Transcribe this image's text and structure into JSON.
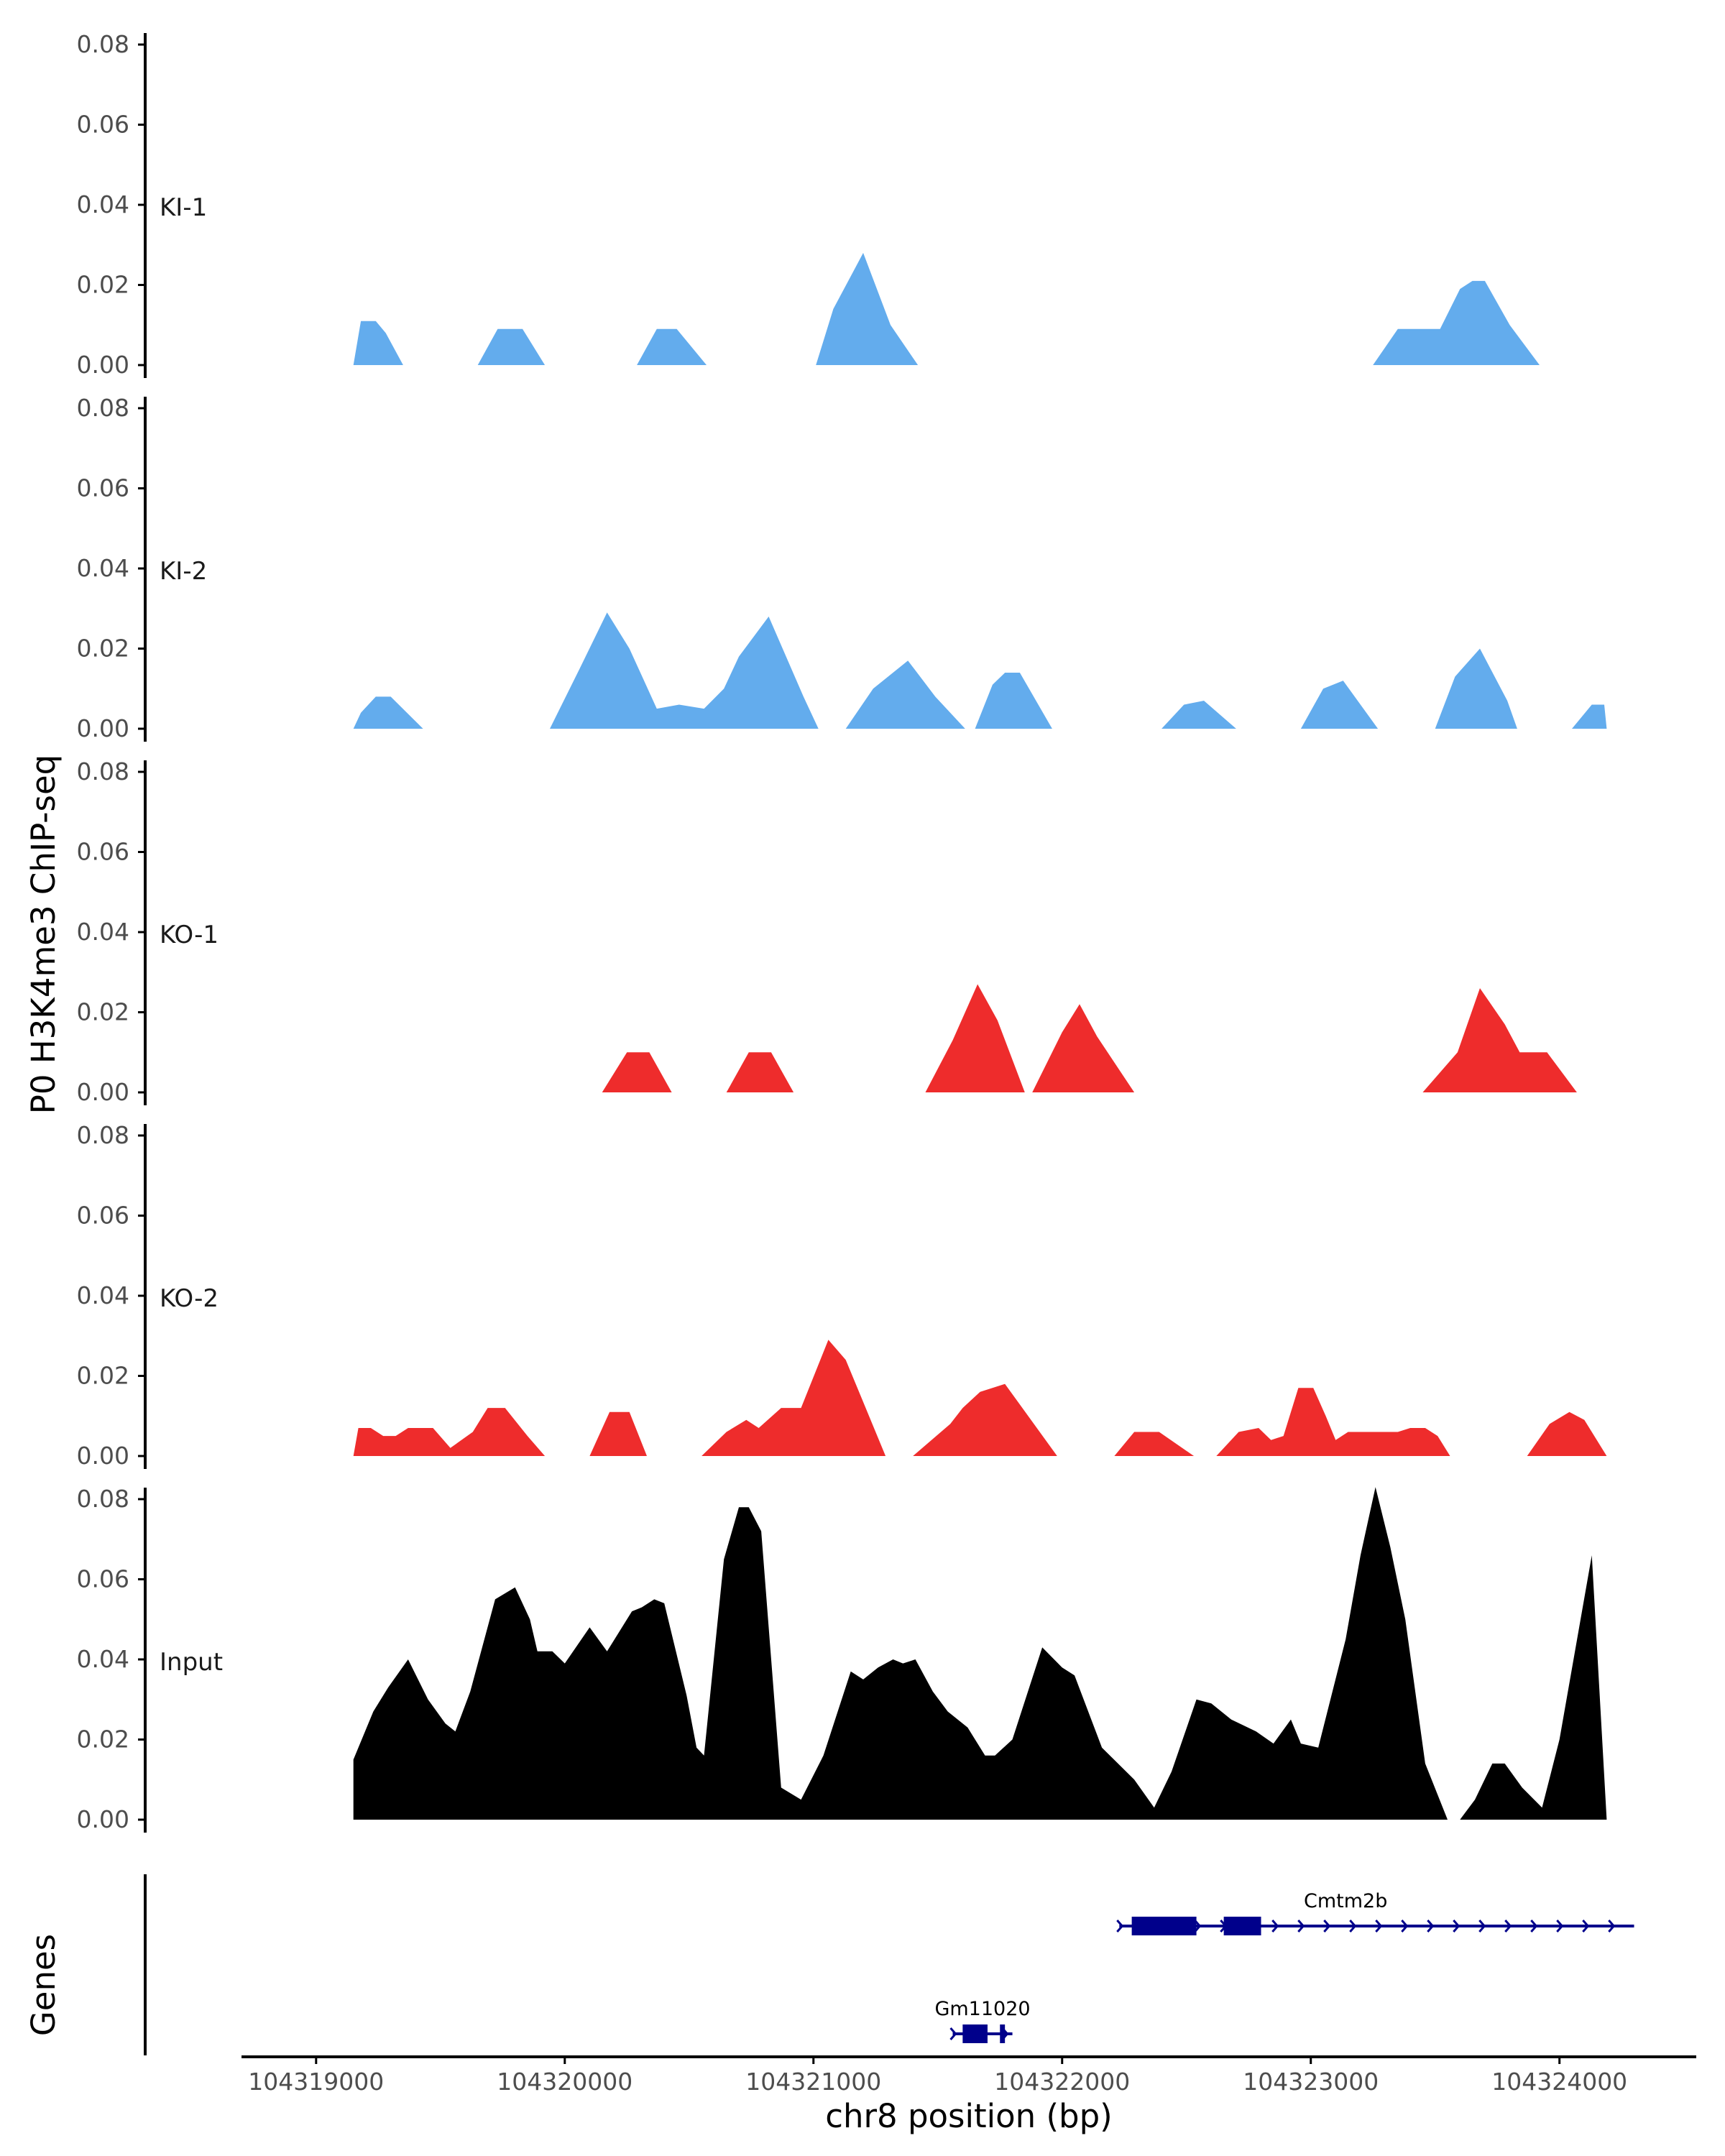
{
  "chart_data": {
    "type": "area",
    "ylabel": "P0 H3K4me3 ChIP-seq",
    "xlabel": "chr8 position (bp)",
    "xlim": [
      104318700,
      104324550
    ],
    "x_ticks": [
      104319000,
      104320000,
      104321000,
      104322000,
      104323000,
      104324000
    ],
    "x_tick_labels": [
      "104319000",
      "104320000",
      "104321000",
      "104322000",
      "104323000",
      "104324000"
    ],
    "ylim": [
      0,
      0.08
    ],
    "y_ticks": [
      0,
      0.02,
      0.04,
      0.06,
      0.08
    ],
    "y_tick_labels": [
      "0.00",
      "0.02",
      "0.04",
      "0.06",
      "0.08"
    ],
    "colors": {
      "KI": "#63aced",
      "KO": "#ee2c2c",
      "Input": "#000000",
      "gene": "#00008b"
    },
    "tracks": [
      {
        "name": "KI-1",
        "color": "#63aced",
        "points": [
          [
            104319150,
            0
          ],
          [
            104319180,
            0.011
          ],
          [
            104319240,
            0.011
          ],
          [
            104319280,
            0.008
          ],
          [
            104319350,
            0
          ],
          [
            104319650,
            0
          ],
          [
            104319730,
            0.009
          ],
          [
            104319830,
            0.009
          ],
          [
            104319920,
            0
          ],
          [
            104320290,
            0
          ],
          [
            104320370,
            0.009
          ],
          [
            104320450,
            0.009
          ],
          [
            104320570,
            0
          ],
          [
            104321010,
            0
          ],
          [
            104321080,
            0.014
          ],
          [
            104321200,
            0.028
          ],
          [
            104321310,
            0.01
          ],
          [
            104321420,
            0
          ],
          [
            104323250,
            0
          ],
          [
            104323350,
            0.009
          ],
          [
            104323520,
            0.009
          ],
          [
            104323600,
            0.019
          ],
          [
            104323650,
            0.021
          ],
          [
            104323700,
            0.021
          ],
          [
            104323800,
            0.01
          ],
          [
            104323920,
            0
          ]
        ]
      },
      {
        "name": "KI-2",
        "color": "#63aced",
        "points": [
          [
            104319150,
            0
          ],
          [
            104319180,
            0.004
          ],
          [
            104319240,
            0.008
          ],
          [
            104319300,
            0.008
          ],
          [
            104319430,
            0
          ],
          [
            104319940,
            0
          ],
          [
            104320060,
            0.015
          ],
          [
            104320170,
            0.029
          ],
          [
            104320260,
            0.02
          ],
          [
            104320370,
            0.005
          ],
          [
            104320460,
            0.006
          ],
          [
            104320560,
            0.005
          ],
          [
            104320640,
            0.01
          ],
          [
            104320700,
            0.018
          ],
          [
            104320820,
            0.028
          ],
          [
            104320960,
            0.008
          ],
          [
            104321020,
            0
          ],
          [
            104321130,
            0
          ],
          [
            104321240,
            0.01
          ],
          [
            104321380,
            0.017
          ],
          [
            104321490,
            0.008
          ],
          [
            104321610,
            0
          ],
          [
            104321650,
            0
          ],
          [
            104321720,
            0.011
          ],
          [
            104321770,
            0.014
          ],
          [
            104321830,
            0.014
          ],
          [
            104321960,
            0
          ],
          [
            104322400,
            0
          ],
          [
            104322490,
            0.006
          ],
          [
            104322570,
            0.007
          ],
          [
            104322700,
            0
          ],
          [
            104322960,
            0
          ],
          [
            104323050,
            0.01
          ],
          [
            104323130,
            0.012
          ],
          [
            104323270,
            0
          ],
          [
            104323500,
            0
          ],
          [
            104323580,
            0.013
          ],
          [
            104323680,
            0.02
          ],
          [
            104323790,
            0.007
          ],
          [
            104323830,
            0
          ],
          [
            104324050,
            0
          ],
          [
            104324130,
            0.006
          ],
          [
            104324180,
            0.006
          ],
          [
            104324190,
            0
          ]
        ]
      },
      {
        "name": "KO-1",
        "color": "#ee2c2c",
        "points": [
          [
            104320150,
            0
          ],
          [
            104320250,
            0.01
          ],
          [
            104320340,
            0.01
          ],
          [
            104320430,
            0
          ],
          [
            104320650,
            0
          ],
          [
            104320740,
            0.01
          ],
          [
            104320830,
            0.01
          ],
          [
            104320920,
            0
          ],
          [
            104321450,
            0
          ],
          [
            104321560,
            0.013
          ],
          [
            104321660,
            0.027
          ],
          [
            104321740,
            0.018
          ],
          [
            104321850,
            0
          ],
          [
            104321880,
            0
          ],
          [
            104322000,
            0.015
          ],
          [
            104322070,
            0.022
          ],
          [
            104322140,
            0.014
          ],
          [
            104322290,
            0
          ],
          [
            104323450,
            0
          ],
          [
            104323590,
            0.01
          ],
          [
            104323680,
            0.026
          ],
          [
            104323780,
            0.017
          ],
          [
            104323840,
            0.01
          ],
          [
            104323880,
            0.01
          ],
          [
            104323950,
            0.01
          ],
          [
            104324070,
            0
          ]
        ]
      },
      {
        "name": "KO-2",
        "color": "#ee2c2c",
        "points": [
          [
            104319150,
            0
          ],
          [
            104319170,
            0.007
          ],
          [
            104319220,
            0.007
          ],
          [
            104319270,
            0.005
          ],
          [
            104319320,
            0.005
          ],
          [
            104319370,
            0.007
          ],
          [
            104319470,
            0.007
          ],
          [
            104319540,
            0.002
          ],
          [
            104319630,
            0.006
          ],
          [
            104319690,
            0.012
          ],
          [
            104319760,
            0.012
          ],
          [
            104319850,
            0.005
          ],
          [
            104319920,
            0
          ],
          [
            104320100,
            0
          ],
          [
            104320180,
            0.011
          ],
          [
            104320260,
            0.011
          ],
          [
            104320330,
            0
          ],
          [
            104320550,
            0
          ],
          [
            104320650,
            0.006
          ],
          [
            104320730,
            0.009
          ],
          [
            104320780,
            0.007
          ],
          [
            104320870,
            0.012
          ],
          [
            104320950,
            0.012
          ],
          [
            104321060,
            0.029
          ],
          [
            104321130,
            0.024
          ],
          [
            104321190,
            0.015
          ],
          [
            104321290,
            0
          ],
          [
            104321400,
            0
          ],
          [
            104321550,
            0.008
          ],
          [
            104321600,
            0.012
          ],
          [
            104321670,
            0.016
          ],
          [
            104321770,
            0.018
          ],
          [
            104321840,
            0.012
          ],
          [
            104321980,
            0
          ],
          [
            104322210,
            0
          ],
          [
            104322290,
            0.006
          ],
          [
            104322390,
            0.006
          ],
          [
            104322530,
            0
          ],
          [
            104322620,
            0
          ],
          [
            104322710,
            0.006
          ],
          [
            104322790,
            0.007
          ],
          [
            104322840,
            0.004
          ],
          [
            104322890,
            0.005
          ],
          [
            104322950,
            0.017
          ],
          [
            104323010,
            0.017
          ],
          [
            104323060,
            0.01
          ],
          [
            104323100,
            0.004
          ],
          [
            104323150,
            0.006
          ],
          [
            104323230,
            0.006
          ],
          [
            104323350,
            0.006
          ],
          [
            104323400,
            0.007
          ],
          [
            104323460,
            0.007
          ],
          [
            104323510,
            0.005
          ],
          [
            104323560,
            0
          ],
          [
            104323870,
            0
          ],
          [
            104323960,
            0.008
          ],
          [
            104324040,
            0.011
          ],
          [
            104324100,
            0.009
          ],
          [
            104324190,
            0
          ]
        ]
      },
      {
        "name": "Input",
        "color": "#000000",
        "points": [
          [
            104319150,
            0
          ],
          [
            104319150,
            0.015
          ],
          [
            104319230,
            0.027
          ],
          [
            104319290,
            0.033
          ],
          [
            104319370,
            0.04
          ],
          [
            104319450,
            0.03
          ],
          [
            104319520,
            0.024
          ],
          [
            104319560,
            0.022
          ],
          [
            104319620,
            0.032
          ],
          [
            104319720,
            0.055
          ],
          [
            104319800,
            0.058
          ],
          [
            104319860,
            0.05
          ],
          [
            104319890,
            0.042
          ],
          [
            104319950,
            0.042
          ],
          [
            104320000,
            0.039
          ],
          [
            104320100,
            0.048
          ],
          [
            104320170,
            0.042
          ],
          [
            104320270,
            0.052
          ],
          [
            104320310,
            0.053
          ],
          [
            104320360,
            0.055
          ],
          [
            104320400,
            0.054
          ],
          [
            104320490,
            0.031
          ],
          [
            104320530,
            0.018
          ],
          [
            104320560,
            0.016
          ],
          [
            104320640,
            0.065
          ],
          [
            104320700,
            0.078
          ],
          [
            104320740,
            0.078
          ],
          [
            104320790,
            0.072
          ],
          [
            104320870,
            0.008
          ],
          [
            104320950,
            0.005
          ],
          [
            104321040,
            0.016
          ],
          [
            104321150,
            0.037
          ],
          [
            104321200,
            0.035
          ],
          [
            104321260,
            0.038
          ],
          [
            104321320,
            0.04
          ],
          [
            104321360,
            0.039
          ],
          [
            104321410,
            0.04
          ],
          [
            104321480,
            0.032
          ],
          [
            104321540,
            0.027
          ],
          [
            104321620,
            0.023
          ],
          [
            104321690,
            0.016
          ],
          [
            104321730,
            0.016
          ],
          [
            104321800,
            0.02
          ],
          [
            104321920,
            0.043
          ],
          [
            104322000,
            0.038
          ],
          [
            104322050,
            0.036
          ],
          [
            104322160,
            0.018
          ],
          [
            104322290,
            0.01
          ],
          [
            104322370,
            0.003
          ],
          [
            104322440,
            0.012
          ],
          [
            104322540,
            0.03
          ],
          [
            104322600,
            0.029
          ],
          [
            104322680,
            0.025
          ],
          [
            104322780,
            0.022
          ],
          [
            104322850,
            0.019
          ],
          [
            104322920,
            0.025
          ],
          [
            104322960,
            0.019
          ],
          [
            104323030,
            0.018
          ],
          [
            104323140,
            0.045
          ],
          [
            104323200,
            0.066
          ],
          [
            104323260,
            0.083
          ],
          [
            104323320,
            0.068
          ],
          [
            104323380,
            0.05
          ],
          [
            104323460,
            0.014
          ],
          [
            104323550,
            0
          ],
          [
            104323600,
            0
          ],
          [
            104323660,
            0.005
          ],
          [
            104323730,
            0.014
          ],
          [
            104323780,
            0.014
          ],
          [
            104323850,
            0.008
          ],
          [
            104323930,
            0.003
          ],
          [
            104324000,
            0.02
          ],
          [
            104324130,
            0.066
          ],
          [
            104324190,
            0
          ]
        ]
      }
    ],
    "genes_track": {
      "label": "Genes",
      "genes": [
        {
          "name": "Cmtm2b",
          "start": 104322230,
          "end": 104324300,
          "strand": "+",
          "exons": [
            [
              104322280,
              104322540
            ],
            [
              104322650,
              104322800
            ]
          ]
        },
        {
          "name": "Gm11020",
          "start": 104321560,
          "end": 104321800,
          "strand": "+",
          "exons": [
            [
              104321600,
              104321700
            ],
            [
              104321750,
              104321770
            ]
          ]
        }
      ]
    }
  }
}
